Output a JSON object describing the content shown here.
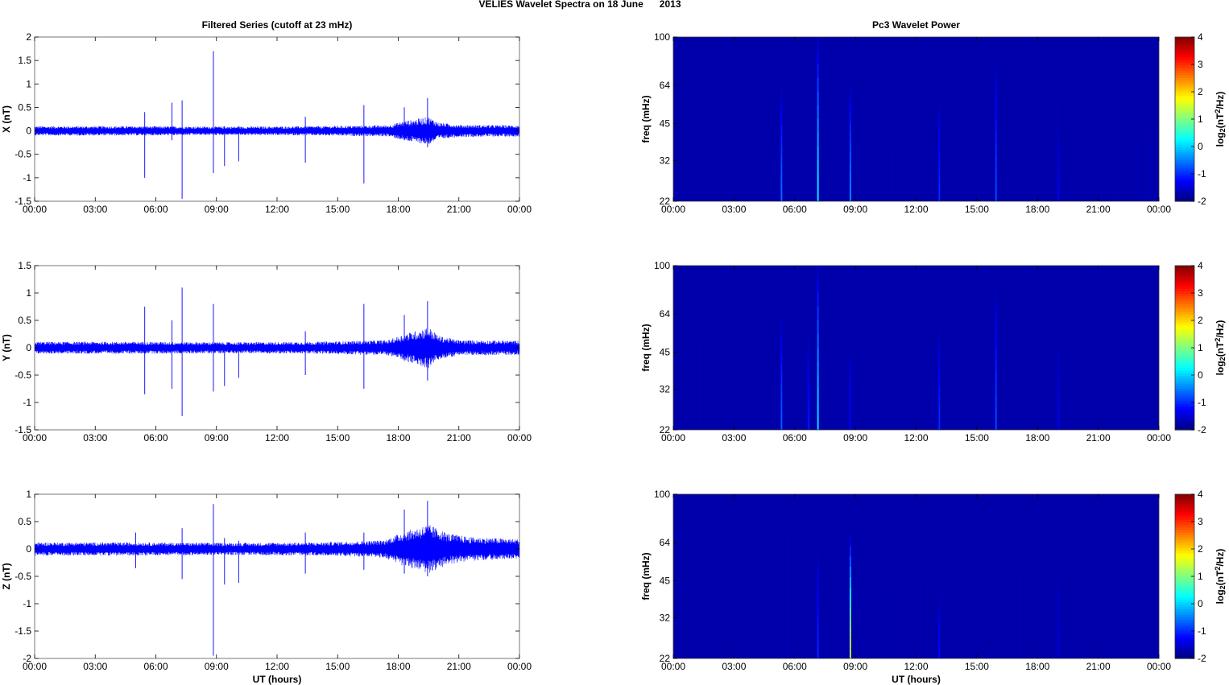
{
  "figure": {
    "title": "VELIES Wavelet Spectra on 18 June      2013"
  },
  "chart_data": [
    {
      "type": "line",
      "panel": "left-1",
      "title": "Filtered Series (cutoff at 23 mHz)",
      "xlabel": "",
      "ylabel": "X (nT)",
      "xlim": [
        0,
        24
      ],
      "ylim": [
        -1.5,
        2
      ],
      "x_ticks": [
        "00:00",
        "03:00",
        "06:00",
        "09:00",
        "12:00",
        "15:00",
        "18:00",
        "21:00",
        "00:00"
      ],
      "y_ticks": [
        "-1.5",
        "-1",
        "-0.5",
        "0",
        "0.5",
        "1",
        "1.5",
        "2"
      ],
      "series_color": "#0000ff",
      "baseline_noise": [
        {
          "x": 0,
          "a": 0.1
        },
        {
          "x": 5,
          "a": 0.1
        },
        {
          "x": 10,
          "a": 0.09
        },
        {
          "x": 14,
          "a": 0.1
        },
        {
          "x": 17.5,
          "a": 0.12
        },
        {
          "x": 18.2,
          "a": 0.2
        },
        {
          "x": 19.5,
          "a": 0.3
        },
        {
          "x": 20,
          "a": 0.18
        },
        {
          "x": 21,
          "a": 0.13
        },
        {
          "x": 24,
          "a": 0.12
        }
      ],
      "spikes": [
        {
          "x": 5.45,
          "min": -1.0,
          "max": 0.4
        },
        {
          "x": 6.8,
          "min": -0.2,
          "max": 0.6
        },
        {
          "x": 7.3,
          "min": -1.45,
          "max": 0.65
        },
        {
          "x": 8.85,
          "min": -0.9,
          "max": 1.7
        },
        {
          "x": 9.4,
          "min": -0.75,
          "max": 0.1
        },
        {
          "x": 10.1,
          "min": -0.65,
          "max": 0.1
        },
        {
          "x": 13.4,
          "min": -0.68,
          "max": 0.3
        },
        {
          "x": 16.3,
          "min": -1.12,
          "max": 0.55
        },
        {
          "x": 18.3,
          "min": -0.2,
          "max": 0.5
        },
        {
          "x": 19.45,
          "min": -0.35,
          "max": 0.7
        }
      ]
    },
    {
      "type": "heatmap",
      "panel": "right-1",
      "title": "Pc3 Wavelet Power",
      "xlabel": "",
      "ylabel": "freq (mHz)",
      "xlim": [
        0,
        24
      ],
      "ylim": [
        22,
        100
      ],
      "yscale": "log",
      "x_ticks": [
        "00:00",
        "03:00",
        "06:00",
        "09:00",
        "12:00",
        "15:00",
        "18:00",
        "21:00",
        "00:00"
      ],
      "y_ticks": [
        100,
        64,
        45,
        32,
        22
      ],
      "colorbar": {
        "label": "log2(nT2/Hz)",
        "range": [
          -2,
          4
        ],
        "ticks": [
          "4",
          "3",
          "2",
          "1",
          "0",
          "-1",
          "-2"
        ],
        "colormap": "jet"
      },
      "background_level": -1.75,
      "streaks": [
        {
          "x": 5.35,
          "fmax": 62,
          "peak": -0.6
        },
        {
          "x": 7.15,
          "fmax": 100,
          "peak": 0.3
        },
        {
          "x": 8.75,
          "fmax": 65,
          "peak": -0.4
        },
        {
          "x": 13.15,
          "fmax": 56,
          "peak": -1.0
        },
        {
          "x": 15.95,
          "fmax": 80,
          "peak": -0.8
        },
        {
          "x": 19.05,
          "fmax": 45,
          "peak": -1.4
        }
      ]
    },
    {
      "type": "line",
      "panel": "left-2",
      "title": "",
      "xlabel": "",
      "ylabel": "Y (nT)",
      "xlim": [
        0,
        24
      ],
      "ylim": [
        -1.5,
        1.5
      ],
      "x_ticks": [
        "00:00",
        "03:00",
        "06:00",
        "09:00",
        "12:00",
        "15:00",
        "18:00",
        "21:00",
        "00:00"
      ],
      "y_ticks": [
        "-1.5",
        "-1",
        "-0.5",
        "0",
        "0.5",
        "1",
        "1.5"
      ],
      "series_color": "#0000ff",
      "baseline_noise": [
        {
          "x": 0,
          "a": 0.11
        },
        {
          "x": 5,
          "a": 0.11
        },
        {
          "x": 10,
          "a": 0.1
        },
        {
          "x": 14,
          "a": 0.11
        },
        {
          "x": 17.5,
          "a": 0.14
        },
        {
          "x": 18.3,
          "a": 0.25
        },
        {
          "x": 19.5,
          "a": 0.38
        },
        {
          "x": 20,
          "a": 0.22
        },
        {
          "x": 21,
          "a": 0.14
        },
        {
          "x": 24,
          "a": 0.13
        }
      ],
      "spikes": [
        {
          "x": 5.45,
          "min": -0.85,
          "max": 0.75
        },
        {
          "x": 6.8,
          "min": -0.75,
          "max": 0.5
        },
        {
          "x": 7.3,
          "min": -1.25,
          "max": 1.1
        },
        {
          "x": 8.85,
          "min": -0.8,
          "max": 0.8
        },
        {
          "x": 9.4,
          "min": -0.7,
          "max": 0.05
        },
        {
          "x": 10.1,
          "min": -0.55,
          "max": 0.1
        },
        {
          "x": 13.4,
          "min": -0.5,
          "max": 0.3
        },
        {
          "x": 16.3,
          "min": -0.75,
          "max": 0.8
        },
        {
          "x": 18.3,
          "min": -0.2,
          "max": 0.6
        },
        {
          "x": 19.45,
          "min": -0.6,
          "max": 0.85
        }
      ]
    },
    {
      "type": "heatmap",
      "panel": "right-2",
      "title": "",
      "xlabel": "",
      "ylabel": "freq (mHz)",
      "xlim": [
        0,
        24
      ],
      "ylim": [
        22,
        100
      ],
      "yscale": "log",
      "x_ticks": [
        "00:00",
        "03:00",
        "06:00",
        "09:00",
        "12:00",
        "15:00",
        "18:00",
        "21:00",
        "00:00"
      ],
      "y_ticks": [
        100,
        64,
        45,
        32,
        22
      ],
      "colorbar": {
        "label": "log2(nT2/Hz)",
        "range": [
          -2,
          4
        ],
        "ticks": [
          "4",
          "3",
          "2",
          "1",
          "0",
          "-1",
          "-2"
        ],
        "colormap": "jet"
      },
      "background_level": -1.75,
      "streaks": [
        {
          "x": 5.35,
          "fmax": 62,
          "peak": -0.7
        },
        {
          "x": 6.7,
          "fmax": 52,
          "peak": -1.1
        },
        {
          "x": 7.15,
          "fmax": 100,
          "peak": 0.2
        },
        {
          "x": 8.75,
          "fmax": 48,
          "peak": -1.3
        },
        {
          "x": 13.15,
          "fmax": 56,
          "peak": -1.0
        },
        {
          "x": 15.95,
          "fmax": 82,
          "peak": -0.8
        },
        {
          "x": 19.05,
          "fmax": 50,
          "peak": -1.4
        }
      ]
    },
    {
      "type": "line",
      "panel": "left-3",
      "title": "",
      "xlabel": "UT (hours)",
      "ylabel": "Z (nT)",
      "xlim": [
        0,
        24
      ],
      "ylim": [
        -2,
        1
      ],
      "x_ticks": [
        "00:00",
        "03:00",
        "06:00",
        "09:00",
        "12:00",
        "15:00",
        "18:00",
        "21:00",
        "00:00"
      ],
      "y_ticks": [
        "-2",
        "-1.5",
        "-1",
        "-0.5",
        "0",
        "0.5",
        "1"
      ],
      "series_color": "#0000ff",
      "baseline_noise": [
        {
          "x": 0,
          "a": 0.12
        },
        {
          "x": 5,
          "a": 0.12
        },
        {
          "x": 10,
          "a": 0.11
        },
        {
          "x": 14,
          "a": 0.12
        },
        {
          "x": 17.3,
          "a": 0.16
        },
        {
          "x": 18.3,
          "a": 0.32
        },
        {
          "x": 19.5,
          "a": 0.45
        },
        {
          "x": 20.5,
          "a": 0.28
        },
        {
          "x": 21.5,
          "a": 0.22
        },
        {
          "x": 24,
          "a": 0.18
        }
      ],
      "spikes": [
        {
          "x": 5.0,
          "min": -0.35,
          "max": 0.3
        },
        {
          "x": 7.3,
          "min": -0.55,
          "max": 0.38
        },
        {
          "x": 8.85,
          "min": -1.95,
          "max": 0.82
        },
        {
          "x": 9.4,
          "min": -0.65,
          "max": 0.2
        },
        {
          "x": 10.1,
          "min": -0.62,
          "max": 0.15
        },
        {
          "x": 13.4,
          "min": -0.45,
          "max": 0.3
        },
        {
          "x": 16.3,
          "min": -0.38,
          "max": 0.3
        },
        {
          "x": 18.3,
          "min": -0.45,
          "max": 0.72
        },
        {
          "x": 19.45,
          "min": -0.5,
          "max": 0.88
        }
      ]
    },
    {
      "type": "heatmap",
      "panel": "right-3",
      "title": "",
      "xlabel": "UT (hours)",
      "ylabel": "freq (mHz)",
      "xlim": [
        0,
        24
      ],
      "ylim": [
        22,
        100
      ],
      "yscale": "log",
      "x_ticks": [
        "00:00",
        "03:00",
        "06:00",
        "09:00",
        "12:00",
        "15:00",
        "18:00",
        "21:00",
        "00:00"
      ],
      "y_ticks": [
        100,
        64,
        45,
        32,
        22
      ],
      "colorbar": {
        "label": "log2(nT2/Hz)",
        "range": [
          -2,
          4
        ],
        "ticks": [
          "4",
          "3",
          "2",
          "1",
          "0",
          "-1",
          "-2"
        ],
        "colormap": "jet"
      },
      "background_level": -1.75,
      "streaks": [
        {
          "x": 7.15,
          "fmax": 58,
          "peak": -1.0
        },
        {
          "x": 8.75,
          "fmax": 68,
          "peak": 1.5
        },
        {
          "x": 13.15,
          "fmax": 38,
          "peak": -1.2
        },
        {
          "x": 19.05,
          "fmax": 48,
          "peak": -1.5
        }
      ]
    }
  ]
}
